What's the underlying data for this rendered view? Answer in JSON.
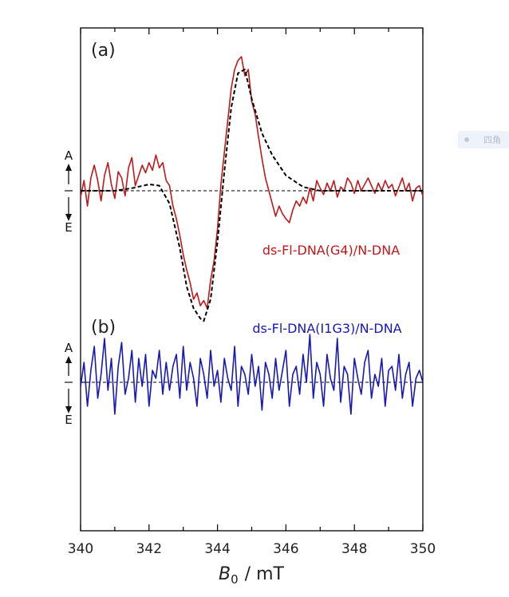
{
  "side_tag": {
    "text": "四角"
  },
  "chart_data": {
    "type": "line",
    "xlabel_symbol": "B",
    "xlabel_sub": "0",
    "xlabel_unit": "/ mT",
    "xlim": [
      340,
      350
    ],
    "xticks": [
      340,
      342,
      344,
      346,
      348,
      350
    ],
    "grid": false,
    "colors": {
      "red": "#c0181c",
      "blue": "#1818b8",
      "fit": "#000000"
    },
    "panels": [
      {
        "label": "(a)",
        "legend": "ds-Fl-DNA(G4)/N-DNA",
        "legend_color": "#c0181c",
        "ylim": [
          -1.0,
          1.0
        ],
        "axis_labels": {
          "up": "A",
          "down": "E"
        },
        "series": [
          {
            "kind": "data",
            "color": "#c0181c",
            "x": [
              340.0,
              340.1,
              340.2,
              340.3,
              340.4,
              340.5,
              340.6,
              340.7,
              340.8,
              340.9,
              341.0,
              341.1,
              341.2,
              341.3,
              341.4,
              341.5,
              341.6,
              341.7,
              341.8,
              341.9,
              342.0,
              342.1,
              342.2,
              342.3,
              342.4,
              342.5,
              342.6,
              342.7,
              342.8,
              342.9,
              343.0,
              343.1,
              343.2,
              343.3,
              343.4,
              343.5,
              343.6,
              343.7,
              343.8,
              343.9,
              344.0,
              344.1,
              344.2,
              344.3,
              344.4,
              344.5,
              344.6,
              344.7,
              344.8,
              344.9,
              345.0,
              345.1,
              345.2,
              345.3,
              345.4,
              345.5,
              345.6,
              345.7,
              345.8,
              345.9,
              346.0,
              346.1,
              346.2,
              346.3,
              346.4,
              346.5,
              346.6,
              346.7,
              346.8,
              346.9,
              347.0,
              347.1,
              347.2,
              347.3,
              347.4,
              347.5,
              347.6,
              347.7,
              347.8,
              347.9,
              348.0,
              348.1,
              348.2,
              348.3,
              348.4,
              348.5,
              348.6,
              348.7,
              348.8,
              348.9,
              349.0,
              349.1,
              349.2,
              349.3,
              349.4,
              349.5,
              349.6,
              349.7,
              349.8,
              349.9,
              350.0
            ],
            "y": [
              -0.05,
              0.08,
              -0.12,
              0.1,
              0.2,
              0.08,
              -0.08,
              0.12,
              0.22,
              0.05,
              -0.06,
              0.15,
              0.1,
              -0.04,
              0.18,
              0.26,
              0.04,
              0.12,
              0.2,
              0.14,
              0.22,
              0.16,
              0.28,
              0.18,
              0.22,
              0.08,
              0.04,
              -0.12,
              -0.22,
              -0.35,
              -0.5,
              -0.62,
              -0.72,
              -0.85,
              -0.8,
              -0.9,
              -0.86,
              -0.92,
              -0.7,
              -0.55,
              -0.3,
              0.05,
              0.3,
              0.55,
              0.8,
              0.95,
              1.02,
              1.05,
              0.9,
              0.95,
              0.7,
              0.6,
              0.42,
              0.25,
              0.1,
              0.0,
              -0.1,
              -0.2,
              -0.12,
              -0.18,
              -0.22,
              -0.25,
              -0.15,
              -0.08,
              -0.12,
              -0.05,
              -0.1,
              0.02,
              -0.08,
              0.08,
              0.02,
              -0.03,
              0.06,
              0.0,
              0.08,
              -0.05,
              0.03,
              0.0,
              0.1,
              0.06,
              -0.02,
              0.08,
              0.0,
              0.05,
              0.1,
              0.04,
              -0.02,
              0.06,
              0.0,
              0.08,
              0.02,
              0.05,
              -0.04,
              0.03,
              0.1,
              0.0,
              0.06,
              -0.08,
              0.02,
              0.04,
              -0.04
            ]
          },
          {
            "kind": "fit",
            "color": "#000000",
            "dashed": true,
            "x": [
              340.0,
              341.0,
              341.5,
              342.0,
              342.3,
              342.6,
              342.9,
              343.1,
              343.3,
              343.5,
              343.6,
              343.8,
              344.0,
              344.2,
              344.4,
              344.6,
              344.8,
              345.0,
              345.3,
              345.6,
              346.0,
              346.5,
              347.0,
              348.0,
              350.0
            ],
            "y": [
              0.0,
              0.0,
              0.02,
              0.05,
              0.04,
              -0.1,
              -0.45,
              -0.75,
              -0.92,
              -1.0,
              -1.02,
              -0.85,
              -0.4,
              0.15,
              0.65,
              0.92,
              0.95,
              0.72,
              0.45,
              0.28,
              0.12,
              0.03,
              0.0,
              0.0,
              0.0
            ]
          }
        ]
      },
      {
        "label": "(b)",
        "legend": "ds-Fl-DNA(I1G3)/N-DNA",
        "legend_color": "#1818b8",
        "ylim": [
          -1.0,
          1.0
        ],
        "axis_labels": {
          "up": "A",
          "down": "E"
        },
        "series": [
          {
            "kind": "data",
            "color": "#1818b8",
            "x": [
              340.0,
              340.1,
              340.2,
              340.3,
              340.4,
              340.5,
              340.6,
              340.7,
              340.8,
              340.9,
              341.0,
              341.1,
              341.2,
              341.3,
              341.4,
              341.5,
              341.6,
              341.7,
              341.8,
              341.9,
              342.0,
              342.1,
              342.2,
              342.3,
              342.4,
              342.5,
              342.6,
              342.7,
              342.8,
              342.9,
              343.0,
              343.1,
              343.2,
              343.3,
              343.4,
              343.5,
              343.6,
              343.7,
              343.8,
              343.9,
              344.0,
              344.1,
              344.2,
              344.3,
              344.4,
              344.5,
              344.6,
              344.7,
              344.8,
              344.9,
              345.0,
              345.1,
              345.2,
              345.3,
              345.4,
              345.5,
              345.6,
              345.7,
              345.8,
              345.9,
              346.0,
              346.1,
              346.2,
              346.3,
              346.4,
              346.5,
              346.6,
              346.7,
              346.8,
              346.9,
              347.0,
              347.1,
              347.2,
              347.3,
              347.4,
              347.5,
              347.6,
              347.7,
              347.8,
              347.9,
              348.0,
              348.1,
              348.2,
              348.3,
              348.4,
              348.5,
              348.6,
              348.7,
              348.8,
              348.9,
              349.0,
              349.1,
              349.2,
              349.3,
              349.4,
              349.5,
              349.6,
              349.7,
              349.8,
              349.9,
              350.0
            ],
            "y": [
              -0.05,
              0.25,
              -0.3,
              0.15,
              0.45,
              -0.2,
              0.1,
              0.55,
              -0.1,
              0.3,
              -0.4,
              0.2,
              0.5,
              -0.15,
              0.05,
              0.4,
              -0.25,
              0.3,
              -0.05,
              0.35,
              -0.3,
              0.15,
              0.05,
              0.4,
              -0.15,
              0.25,
              -0.1,
              0.2,
              0.35,
              -0.2,
              0.45,
              -0.1,
              0.25,
              0.05,
              -0.3,
              0.3,
              0.1,
              -0.2,
              0.4,
              -0.05,
              0.15,
              -0.25,
              0.3,
              0.05,
              -0.1,
              0.45,
              -0.3,
              0.2,
              0.1,
              -0.15,
              0.35,
              -0.05,
              0.2,
              -0.35,
              0.25,
              0.1,
              -0.2,
              0.3,
              -0.1,
              0.15,
              0.4,
              -0.3,
              0.1,
              0.2,
              -0.15,
              0.35,
              0.0,
              0.6,
              -0.2,
              0.25,
              0.1,
              -0.3,
              0.35,
              0.05,
              -0.1,
              0.55,
              -0.25,
              0.2,
              0.1,
              -0.4,
              0.3,
              0.05,
              -0.15,
              0.25,
              0.4,
              -0.2,
              0.1,
              -0.05,
              0.3,
              -0.3,
              0.15,
              0.2,
              -0.1,
              0.35,
              -0.2,
              0.1,
              0.25,
              -0.3,
              0.05,
              0.15,
              0.0
            ]
          }
        ]
      }
    ]
  }
}
